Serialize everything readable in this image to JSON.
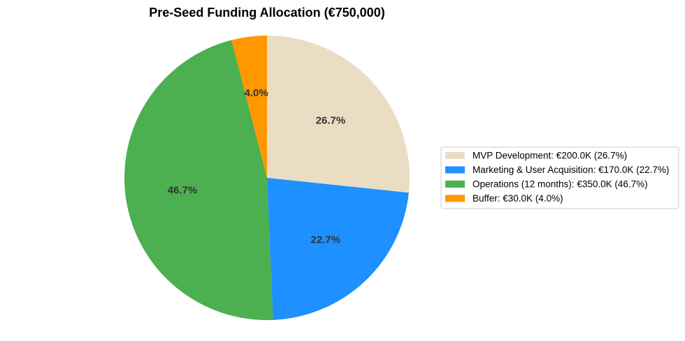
{
  "chart_data": {
    "type": "pie",
    "title": "Pre-Seed Funding Allocation (€750,000)",
    "start_angle_deg": 90,
    "direction": "clockwise",
    "legend_position": "right",
    "slices": [
      {
        "name": "MVP Development",
        "value": 200000,
        "pct_label": "26.7%",
        "legend": "MVP Development: €200.0K (26.7%)",
        "color": "#EADDC4"
      },
      {
        "name": "Marketing & User Acquisition",
        "value": 170000,
        "pct_label": "22.7%",
        "legend": "Marketing & User Acquisition: €170.0K (22.7%)",
        "color": "#1E90FF"
      },
      {
        "name": "Operations (12 months)",
        "value": 350000,
        "pct_label": "46.7%",
        "legend": "Operations (12 months): €350.0K (46.7%)",
        "color": "#4CAF50"
      },
      {
        "name": "Buffer",
        "value": 30000,
        "pct_label": "4.0%",
        "legend": "Buffer: €30.0K (4.0%)",
        "color": "#FF9800"
      }
    ]
  }
}
